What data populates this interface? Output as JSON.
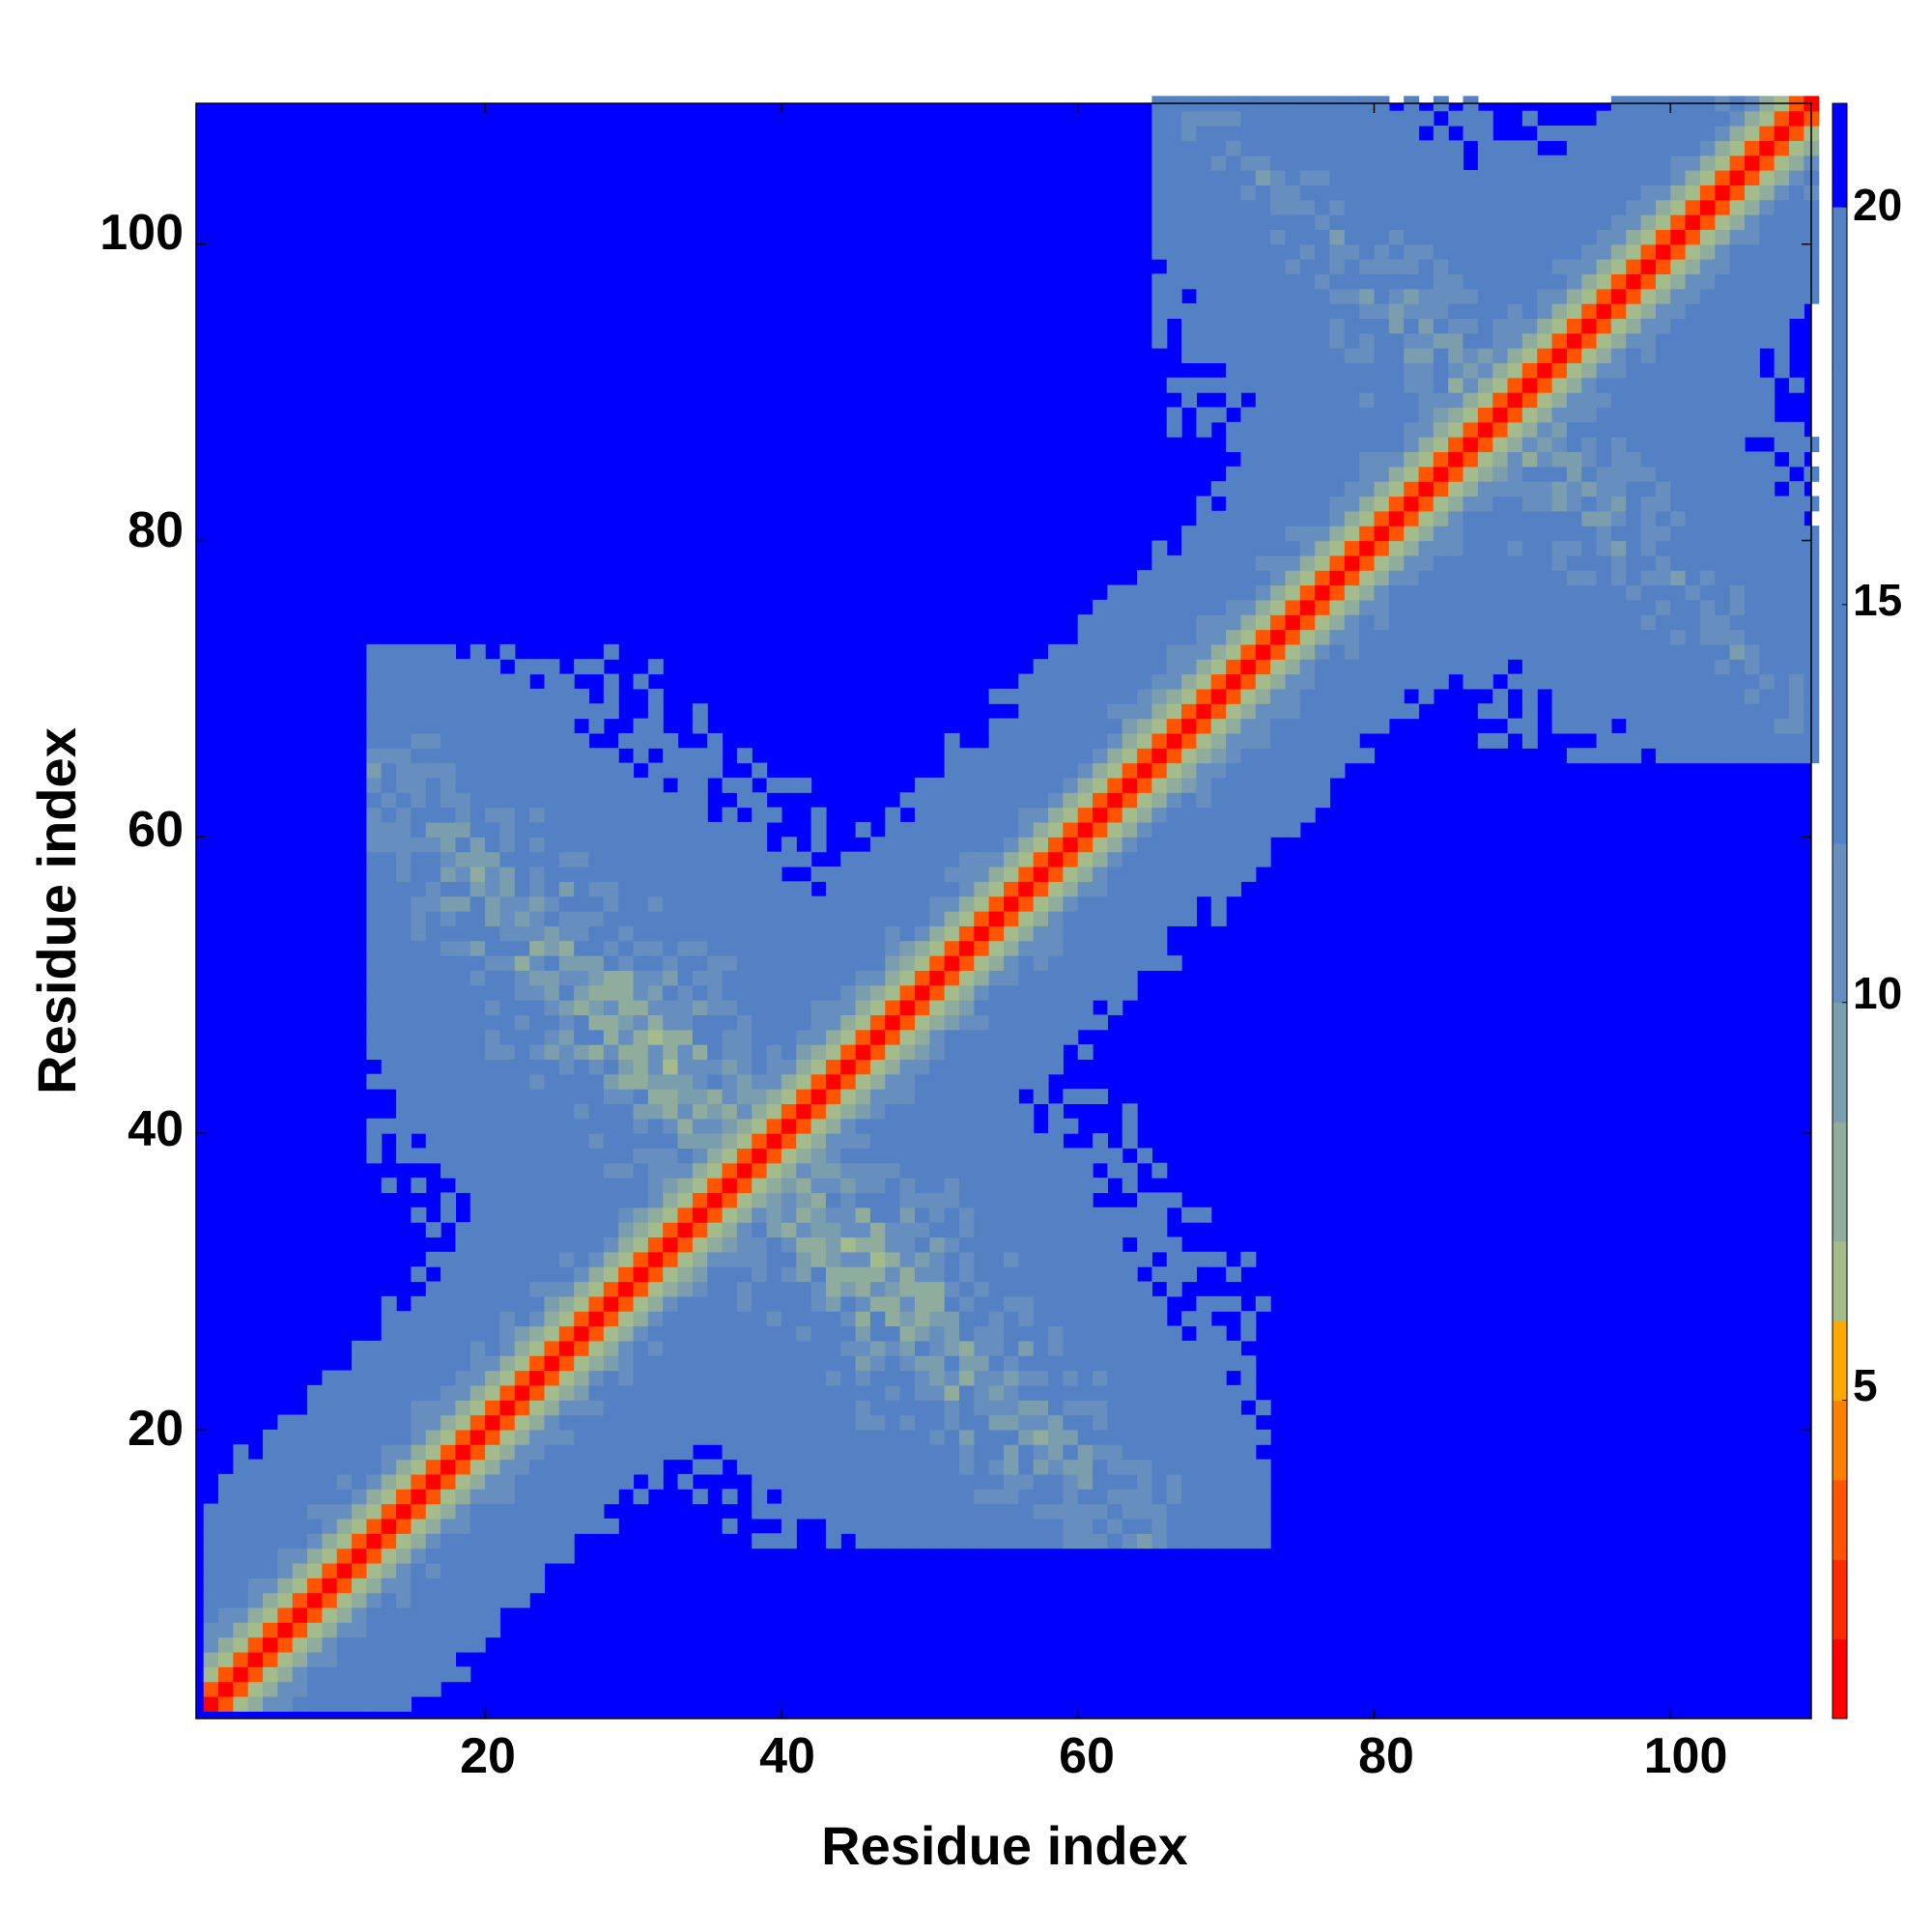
{
  "chart_data": {
    "type": "heatmap",
    "title": "",
    "xlabel": "Residue index",
    "ylabel": "Residue index",
    "xlim": [
      1,
      109
    ],
    "ylim": [
      1,
      109
    ],
    "xticks": [
      20,
      40,
      60,
      80,
      100
    ],
    "yticks": [
      20,
      40,
      60,
      80,
      100
    ],
    "n_residues": 109,
    "colorbar": {
      "ticks": [
        5,
        10,
        15,
        20
      ],
      "range": [
        1,
        21.3
      ],
      "colors": [
        "#ff0000",
        "#ff2a00",
        "#ff5500",
        "#ff7f00",
        "#ffaa00",
        "#a4bb8c",
        "#8fac9c",
        "#7b9eaf",
        "#668fbf",
        "#5381c4",
        "#0000ff"
      ],
      "boundaries": [
        1,
        2,
        3,
        4,
        5,
        6,
        7,
        8.5,
        10,
        12,
        14,
        16,
        18,
        20,
        21.3
      ]
    },
    "distance_model": {
      "description": "Residue pair distance (Angstrom) contact map; symmetric with main diagonal near 0-4, beta sheet contacts near cross-regions",
      "diagonal_band_width": 14,
      "cross_contacts": [
        {
          "i_range": [
            12,
            44
          ],
          "j_range": [
            30,
            72
          ],
          "center_i": 30,
          "center_j": 46,
          "strength": 1
        },
        {
          "i_range": [
            65,
            109
          ],
          "j_range": [
            72,
            109
          ],
          "center_i": 96,
          "center_j": 80,
          "strength": 1
        }
      ]
    }
  },
  "labels": {
    "xlabel": "Residue index",
    "ylabel": "Residue index",
    "xtick_20": "20",
    "xtick_40": "40",
    "xtick_60": "60",
    "xtick_80": "80",
    "xtick_100": "100",
    "ytick_20": "20",
    "ytick_40": "40",
    "ytick_60": "60",
    "ytick_80": "80",
    "ytick_100": "100",
    "cbar_5": "5",
    "cbar_10": "10",
    "cbar_15": "15",
    "cbar_20": "20"
  }
}
